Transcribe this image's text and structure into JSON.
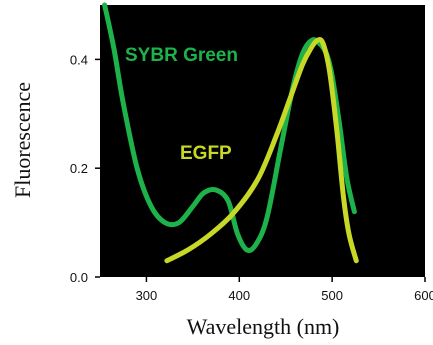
{
  "chart_data": {
    "type": "line",
    "title": "",
    "xlabel": "Wavelength (nm)",
    "ylabel": "Fluorescence",
    "xlim": [
      250,
      600
    ],
    "ylim": [
      0,
      0.5
    ],
    "x_ticks": [
      300,
      400,
      500,
      600
    ],
    "x_tick_labels": [
      "300",
      "400",
      "500",
      "600"
    ],
    "y_ticks": [
      0.0,
      0.2,
      0.4
    ],
    "y_tick_labels": [
      "0.0",
      "0.2",
      "0.4"
    ],
    "grid": false,
    "background_color": "#000000",
    "series": [
      {
        "name": "SYBR Green",
        "color": "#1db34a",
        "x": [
          255,
          265,
          275,
          290,
          305,
          320,
          335,
          350,
          362,
          375,
          388,
          398,
          408,
          418,
          430,
          445,
          458,
          468,
          478,
          486,
          494,
          500,
          508,
          516,
          524
        ],
        "y": [
          0.5,
          0.42,
          0.32,
          0.2,
          0.13,
          0.1,
          0.1,
          0.13,
          0.155,
          0.16,
          0.14,
          0.08,
          0.05,
          0.06,
          0.11,
          0.24,
          0.35,
          0.41,
          0.435,
          0.43,
          0.41,
          0.37,
          0.28,
          0.18,
          0.12
        ]
      },
      {
        "name": "EGFP",
        "color": "#c8d826",
        "x": [
          322,
          345,
          370,
          395,
          420,
          440,
          455,
          468,
          477,
          484,
          490,
          497,
          505,
          512,
          518,
          526
        ],
        "y": [
          0.03,
          0.05,
          0.08,
          0.12,
          0.18,
          0.26,
          0.33,
          0.39,
          0.42,
          0.435,
          0.43,
          0.38,
          0.27,
          0.15,
          0.08,
          0.03
        ]
      }
    ],
    "annotations": [
      {
        "text": "SYBR Green",
        "series": "SYBR Green"
      },
      {
        "text": "EGFP",
        "series": "EGFP"
      }
    ]
  }
}
